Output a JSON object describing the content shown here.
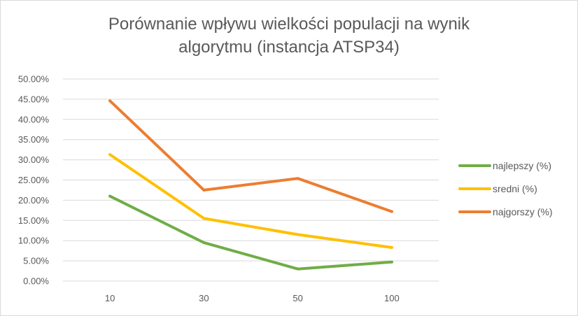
{
  "chart_data": {
    "type": "line",
    "title_line1": "Porównanie wpływu wielkości populacji na wynik",
    "title_line2": "algorytmu (instancja ATSP34)",
    "categories": [
      "10",
      "30",
      "50",
      "100"
    ],
    "y_tick_labels": [
      "0.00%",
      "5.00%",
      "10.00%",
      "15.00%",
      "20.00%",
      "25.00%",
      "30.00%",
      "35.00%",
      "40.00%",
      "45.00%",
      "50.00%"
    ],
    "ylim": [
      0,
      50
    ],
    "grid": true,
    "legend_position": "right",
    "series": [
      {
        "name": "najlepszy (%)",
        "color": "#70ad47",
        "values": [
          21.0,
          9.5,
          3.0,
          4.7
        ]
      },
      {
        "name": "sredni (%)",
        "color": "#ffc000",
        "values": [
          31.3,
          15.5,
          11.5,
          8.3
        ]
      },
      {
        "name": "najgorszy (%)",
        "color": "#ed7d31",
        "values": [
          44.6,
          22.5,
          25.4,
          17.2
        ]
      }
    ]
  }
}
